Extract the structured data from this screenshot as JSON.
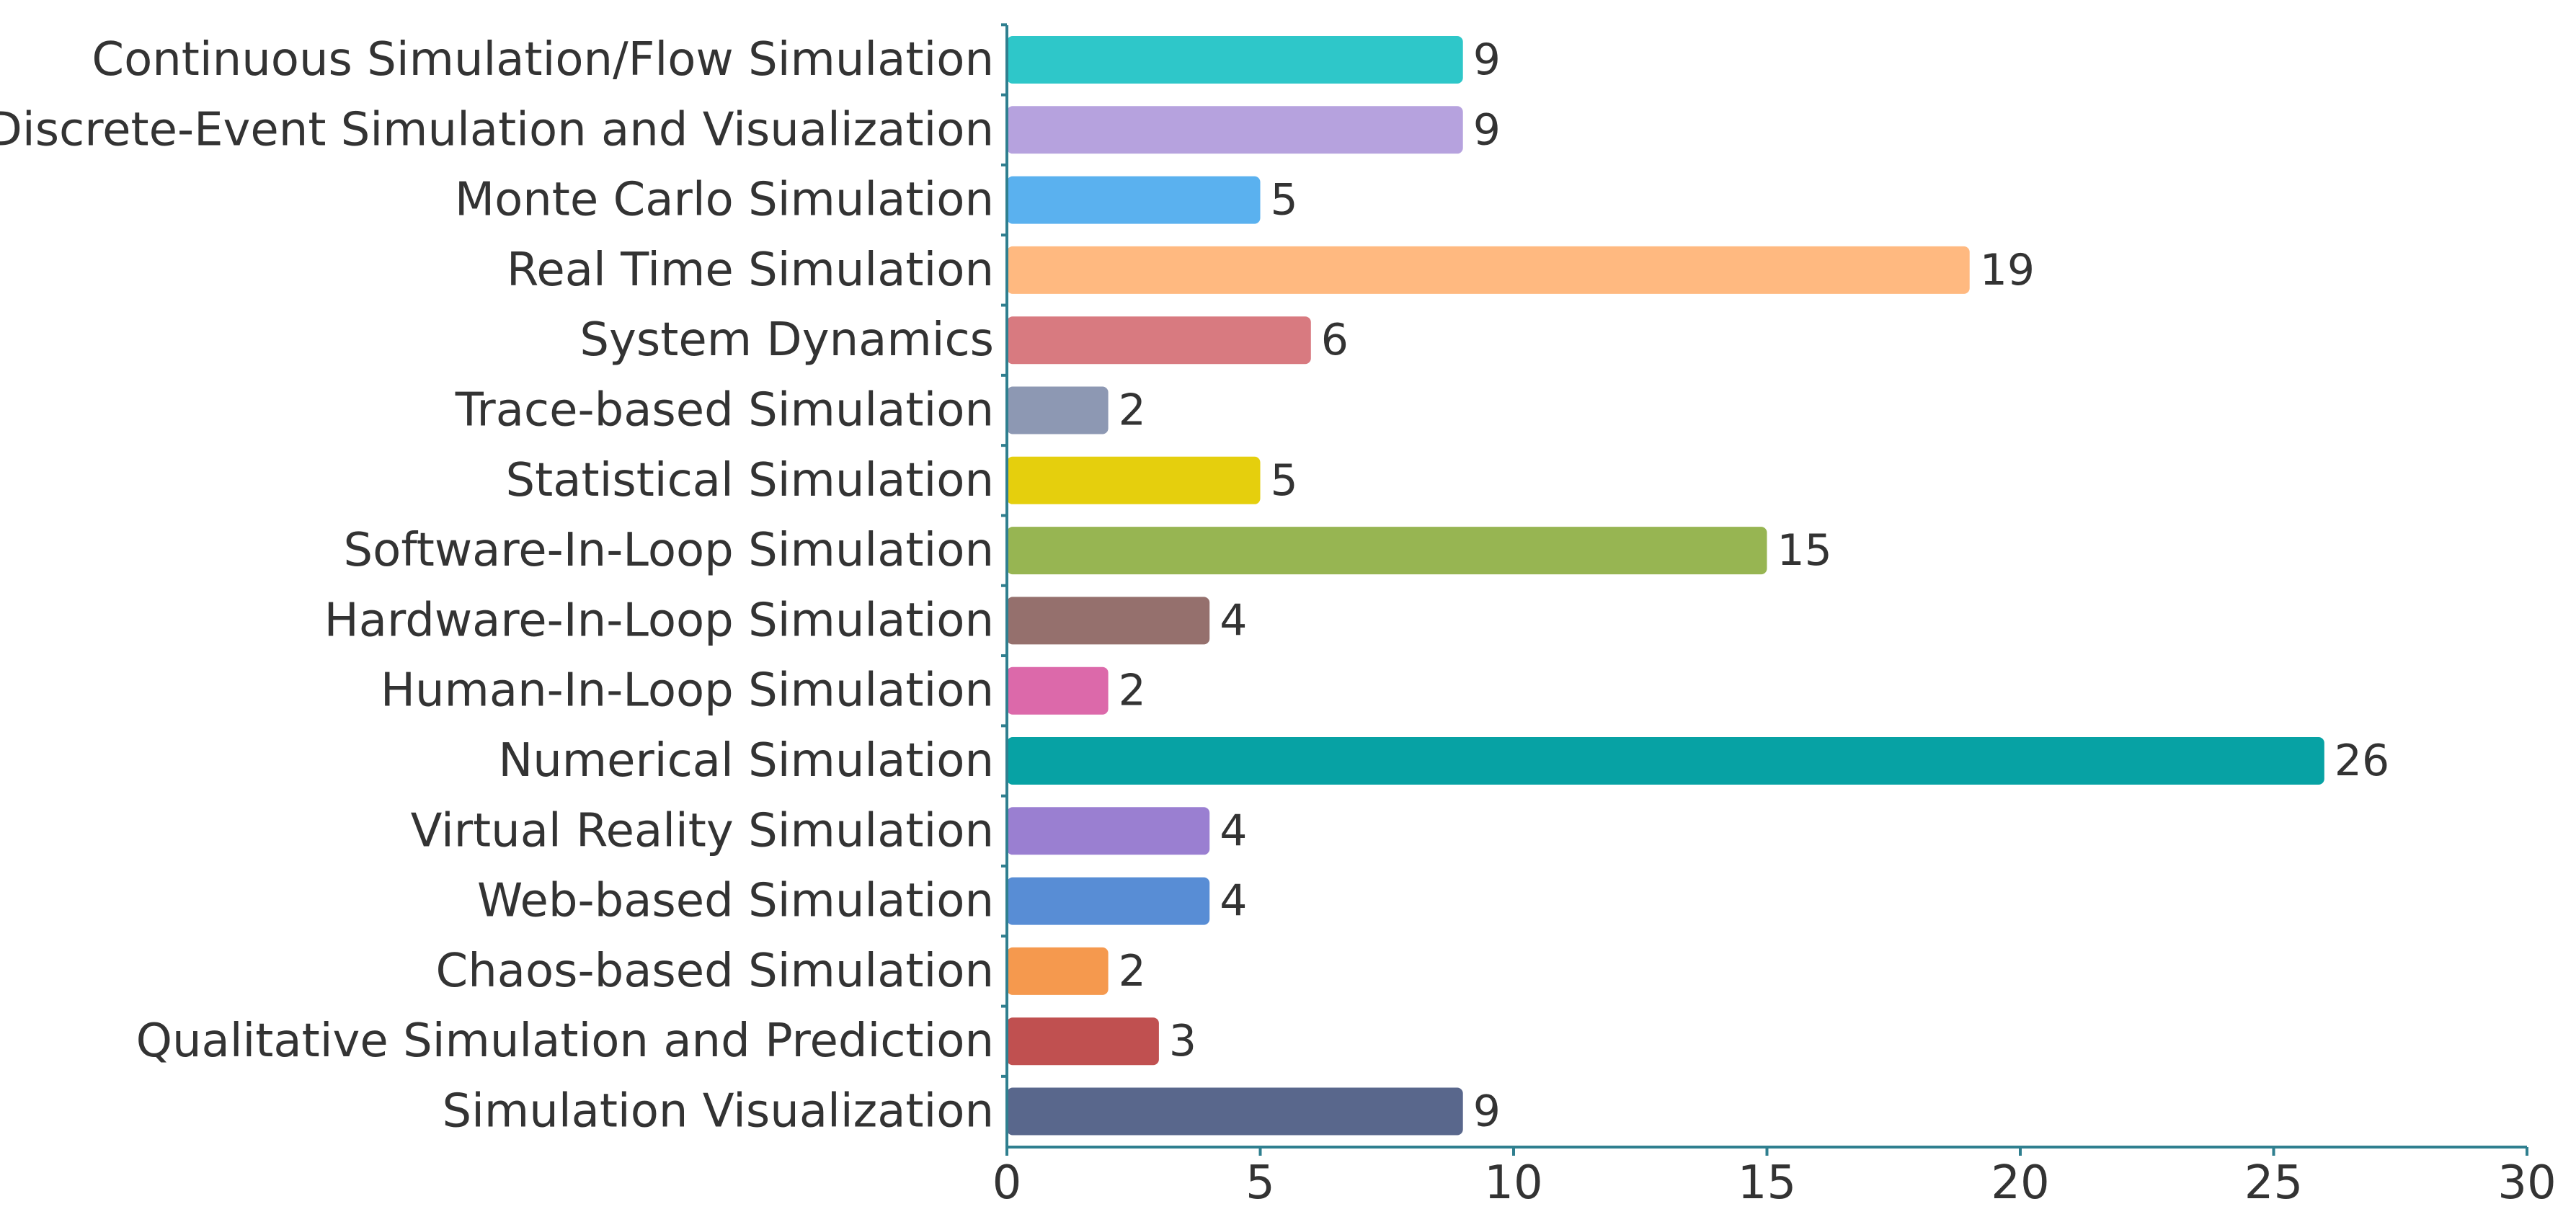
{
  "chart_data": {
    "type": "bar",
    "orientation": "horizontal",
    "title": "",
    "xlabel": "",
    "ylabel": "",
    "xlim": [
      0,
      30
    ],
    "xticks": [
      0,
      5,
      10,
      15,
      20,
      25,
      30
    ],
    "grid": false,
    "categories": [
      "Continuous Simulation/Flow Simulation",
      "Discrete-Event Simulation and Visualization",
      "Monte Carlo Simulation",
      "Real Time Simulation",
      "System Dynamics",
      "Trace-based Simulation",
      "Statistical Simulation",
      "Software-In-Loop Simulation",
      "Hardware-In-Loop Simulation",
      "Human-In-Loop Simulation",
      "Numerical Simulation",
      "Virtual Reality Simulation",
      "Web-based Simulation",
      "Chaos-based Simulation",
      "Qualitative Simulation and Prediction",
      "Simulation Visualization"
    ],
    "values": [
      9,
      9,
      5,
      19,
      6,
      2,
      5,
      15,
      4,
      2,
      26,
      4,
      4,
      2,
      3,
      9
    ],
    "colors": [
      "#2ec7c9",
      "#b6a2de",
      "#5ab1ef",
      "#ffb980",
      "#d87a80",
      "#8d98b3",
      "#e5cf0d",
      "#97b552",
      "#95706d",
      "#dc69aa",
      "#07a2a4",
      "#9a7fd1",
      "#588dd5",
      "#f5994e",
      "#c05050",
      "#59678c"
    ]
  }
}
